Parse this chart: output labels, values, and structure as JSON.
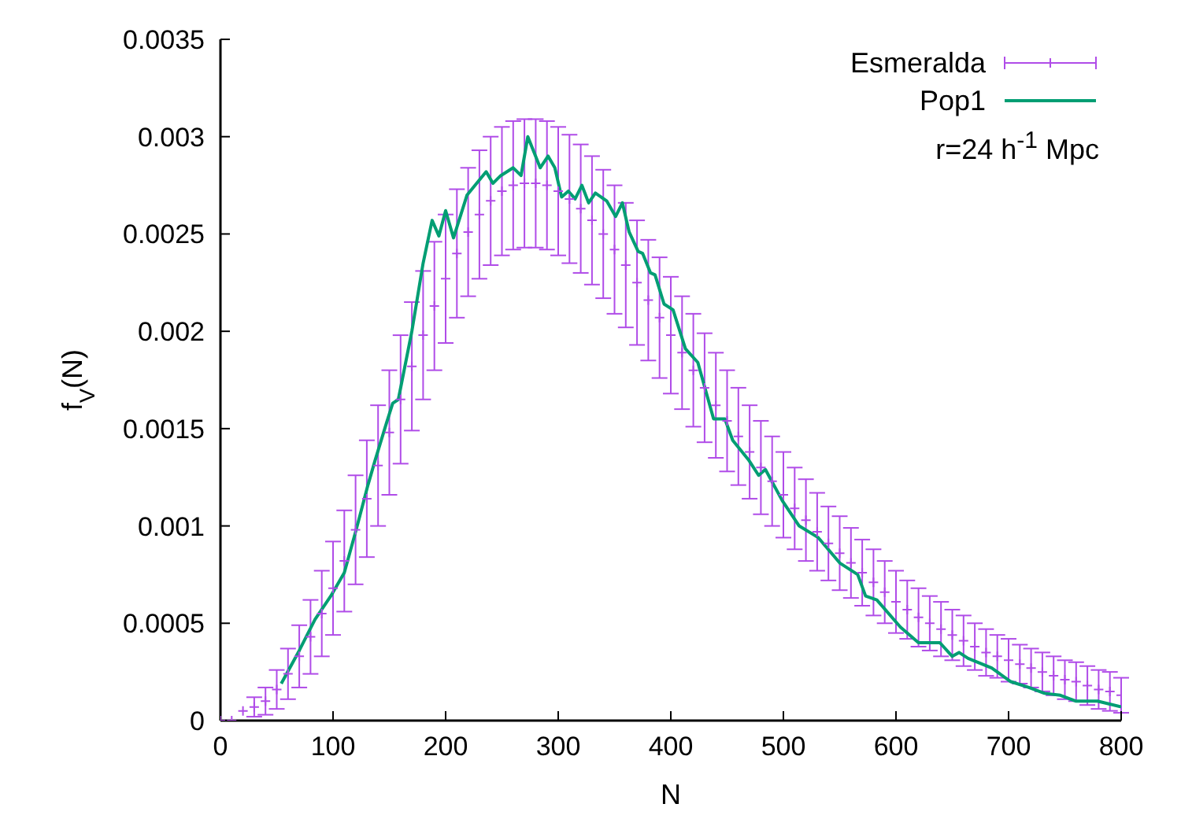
{
  "chart_data": {
    "type": "scatter",
    "xlabel": "N",
    "ylabel": "f$_{V}$(N)",
    "xlim": [
      0,
      800
    ],
    "xticks": [
      0,
      100,
      200,
      300,
      400,
      500,
      600,
      700,
      800
    ],
    "ylim": [
      0,
      0.0035
    ],
    "yticks": [
      0,
      0.0005,
      0.001,
      0.0015,
      0.002,
      0.0025,
      0.003,
      0.0035
    ],
    "legend": "top right",
    "annotations": [
      "r=24 h$^{-1}$ Mpc"
    ],
    "series": [
      {
        "name": "Esmeralda",
        "marker": "cross",
        "color": "#b04ce8",
        "x": [
          0,
          10,
          20,
          30,
          40,
          50,
          60,
          70,
          80,
          90,
          100,
          110,
          120,
          130,
          140,
          150,
          160,
          170,
          180,
          190,
          200,
          210,
          220,
          230,
          240,
          250,
          260,
          270,
          280,
          290,
          300,
          310,
          320,
          330,
          340,
          350,
          360,
          370,
          380,
          390,
          400,
          410,
          420,
          430,
          440,
          450,
          460,
          470,
          480,
          490,
          500,
          510,
          520,
          530,
          540,
          550,
          560,
          570,
          580,
          590,
          600,
          610,
          620,
          630,
          640,
          650,
          660,
          670,
          680,
          690,
          700,
          710,
          720,
          730,
          740,
          750,
          760,
          770,
          780,
          790,
          800
        ],
        "values": [
          0,
          0,
          5e-05,
          7e-05,
          0.0001,
          0.00016,
          0.00024,
          0.00033,
          0.00043,
          0.00055,
          0.00068,
          0.00082,
          0.00098,
          0.00114,
          0.00131,
          0.00148,
          0.00165,
          0.00182,
          0.00198,
          0.00213,
          0.00227,
          0.0024,
          0.00251,
          0.0026,
          0.00267,
          0.00272,
          0.00275,
          0.00276,
          0.00276,
          0.00275,
          0.00272,
          0.00268,
          0.00263,
          0.00257,
          0.0025,
          0.00242,
          0.00234,
          0.00225,
          0.00216,
          0.00207,
          0.00198,
          0.00189,
          0.0018,
          0.00171,
          0.00162,
          0.00154,
          0.00146,
          0.00138,
          0.0013,
          0.00123,
          0.00116,
          0.00109,
          0.00103,
          0.00097,
          0.00091,
          0.00086,
          0.00081,
          0.00076,
          0.00071,
          0.00066,
          0.00061,
          0.00057,
          0.00053,
          0.0005,
          0.00047,
          0.00044,
          0.00041,
          0.00038,
          0.00035,
          0.00033,
          0.00031,
          0.00029,
          0.00027,
          0.00025,
          0.00023,
          0.00021,
          0.0002,
          0.00018,
          0.00016,
          0.00015,
          0.00013
        ],
        "errors": [
          null,
          null,
          null,
          5e-05,
          7e-05,
          0.0001,
          0.00013,
          0.00016,
          0.00019,
          0.00022,
          0.00024,
          0.00026,
          0.00028,
          0.0003,
          0.00031,
          0.00032,
          0.00033,
          0.00033,
          0.00033,
          0.00033,
          0.00033,
          0.00033,
          0.00033,
          0.00033,
          0.00033,
          0.00033,
          0.00033,
          0.00033,
          0.00033,
          0.00033,
          0.00033,
          0.00033,
          0.00033,
          0.00033,
          0.00033,
          0.00033,
          0.00032,
          0.00032,
          0.00031,
          0.00031,
          0.0003,
          0.00029,
          0.00029,
          0.00028,
          0.00027,
          0.00026,
          0.00025,
          0.00024,
          0.00024,
          0.00023,
          0.00022,
          0.00021,
          0.00021,
          0.0002,
          0.00019,
          0.00019,
          0.00018,
          0.00017,
          0.00017,
          0.00016,
          0.00016,
          0.00015,
          0.00015,
          0.00014,
          0.00014,
          0.00013,
          0.00013,
          0.00012,
          0.00012,
          0.00011,
          0.00011,
          0.0001,
          0.0001,
          0.0001,
          0.0001,
          0.0001,
          0.0001,
          0.0001,
          0.0001,
          0.0001,
          9e-05
        ]
      },
      {
        "name": "Pop1",
        "type": "line",
        "marker": "none",
        "line_style": "solid",
        "color": "#009e73",
        "x": [
          54,
          70,
          84,
          98,
          110,
          121,
          131,
          137,
          147,
          153,
          158,
          170,
          180,
          188,
          194,
          200,
          207,
          219,
          236,
          242,
          249,
          260,
          267,
          273,
          284,
          291,
          297,
          303,
          309,
          315,
          321,
          327,
          333,
          343,
          351,
          357,
          363,
          371,
          375,
          382,
          386,
          394,
          402,
          413,
          424,
          438,
          448,
          455,
          469,
          478,
          484,
          499,
          514,
          531,
          550,
          566,
          573,
          583,
          604,
          620,
          639,
          650,
          656,
          664,
          685,
          702,
          718,
          732,
          746,
          760,
          779,
          800
        ],
        "values": [
          0.00019,
          0.00036,
          0.00052,
          0.00064,
          0.00076,
          0.00099,
          0.00121,
          0.00133,
          0.00152,
          0.00163,
          0.00165,
          0.002,
          0.00235,
          0.00257,
          0.00249,
          0.00262,
          0.00248,
          0.0027,
          0.00282,
          0.00276,
          0.0028,
          0.00284,
          0.0028,
          0.003,
          0.00284,
          0.0029,
          0.00284,
          0.00269,
          0.00272,
          0.00268,
          0.00275,
          0.00266,
          0.00271,
          0.00267,
          0.00259,
          0.00266,
          0.00251,
          0.00241,
          0.0024,
          0.0023,
          0.00229,
          0.00214,
          0.00211,
          0.00191,
          0.00184,
          0.00155,
          0.00155,
          0.00144,
          0.00134,
          0.00126,
          0.00129,
          0.00113,
          0.001,
          0.00094,
          0.00081,
          0.00075,
          0.00064,
          0.00062,
          0.00048,
          0.0004,
          0.0004,
          0.00033,
          0.00035,
          0.00032,
          0.00027,
          0.0002,
          0.00017,
          0.00014,
          0.00013,
          0.0001,
          0.0001,
          7e-05
        ]
      }
    ]
  }
}
